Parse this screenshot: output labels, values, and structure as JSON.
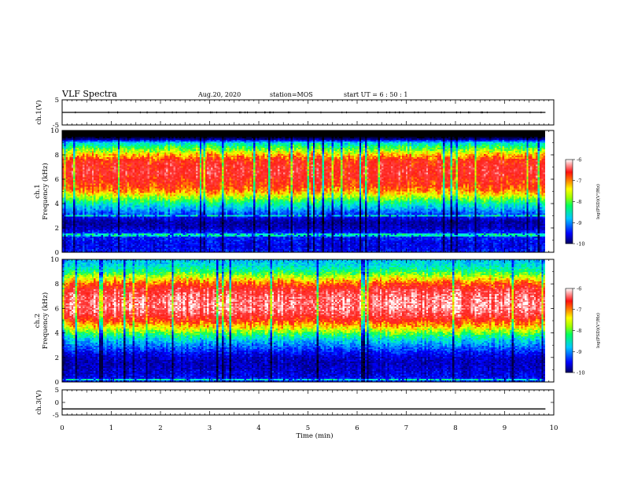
{
  "header": {
    "title": "VLF Spectra",
    "date": "Aug.20, 2020",
    "station": "station=MOS",
    "start": "start UT = 6 : 50 : 1"
  },
  "chart_data": [
    {
      "type": "line",
      "panel": "ch1-waveform",
      "ylabel": "ch.1(V)",
      "ylim": [
        -5,
        5
      ],
      "yticks": [
        "5",
        "-5"
      ],
      "x": [
        0,
        9.83
      ],
      "values": [
        0,
        0
      ]
    },
    {
      "type": "heatmap",
      "panel": "ch1-spectrogram",
      "ylabel": "ch.1\nFrequency (kHz)",
      "ylabel_lines": [
        "ch.1",
        "Frequency (kHz)"
      ],
      "ylim": [
        0,
        10
      ],
      "yticks": [
        "0",
        "2",
        "4",
        "6",
        "8",
        "10"
      ],
      "xlim": [
        0,
        10
      ],
      "data_end_min": 9.83,
      "colorbar": {
        "range": [
          -10,
          -6
        ],
        "ticks": [
          "-6",
          "-7",
          "-8",
          "-9",
          "-10"
        ],
        "label": "log(PSD)(V²/Hz)"
      },
      "profile": {
        "freq_khz": [
          0,
          0.5,
          1,
          1.5,
          2,
          2.5,
          3,
          3.5,
          4,
          4.5,
          5,
          5.5,
          6,
          6.5,
          7,
          7.5,
          8,
          8.5,
          9,
          9.5,
          10
        ],
        "log_psd": [
          -9.4,
          -9.6,
          -9.5,
          -9.3,
          -9.8,
          -9.9,
          -9.4,
          -8.9,
          -8.4,
          -7.8,
          -7.2,
          -6.9,
          -6.8,
          -6.6,
          -6.7,
          -6.8,
          -7.3,
          -8.0,
          -8.6,
          -11,
          -11
        ]
      }
    },
    {
      "type": "heatmap",
      "panel": "ch2-spectrogram",
      "ylabel": "ch.2\nFrequency (kHz)",
      "ylabel_lines": [
        "ch.2",
        "Frequency (kHz)"
      ],
      "ylim": [
        0,
        10
      ],
      "yticks": [
        "0",
        "2",
        "4",
        "6",
        "8",
        "10"
      ],
      "xlim": [
        0,
        10
      ],
      "data_end_min": 9.83,
      "colorbar": {
        "range": [
          -10,
          -6
        ],
        "ticks": [
          "-6",
          "-7",
          "-8",
          "-9",
          "-10"
        ],
        "label": "log(PSD)(V²/Hz)"
      },
      "profile": {
        "freq_khz": [
          0,
          0.5,
          1,
          1.5,
          2,
          2.5,
          3,
          3.5,
          4,
          4.5,
          5,
          5.5,
          6,
          6.5,
          7,
          7.5,
          8,
          8.5,
          9,
          9.5,
          10
        ],
        "log_psd": [
          -9.3,
          -9.6,
          -9.7,
          -9.8,
          -9.7,
          -9.4,
          -9.0,
          -8.6,
          -8.0,
          -7.4,
          -6.9,
          -6.5,
          -6.3,
          -6.3,
          -6.4,
          -6.6,
          -7.0,
          -7.6,
          -8.2,
          -8.6,
          -8.8
        ]
      }
    },
    {
      "type": "line",
      "panel": "ch3-waveform",
      "ylabel": "ch.3(V)",
      "ylim": [
        -5,
        5
      ],
      "yticks": [
        "5",
        "0",
        "-5"
      ],
      "x": [
        0,
        9.83
      ],
      "values": [
        -2.6,
        -2.6
      ]
    }
  ],
  "xaxis": {
    "label": "Time (min)",
    "ticks": [
      "0",
      "1",
      "2",
      "3",
      "4",
      "5",
      "6",
      "7",
      "8",
      "9",
      "10"
    ],
    "range": [
      0,
      10
    ]
  },
  "colors": {
    "waveform": "#000000",
    "frame": "#000000"
  }
}
